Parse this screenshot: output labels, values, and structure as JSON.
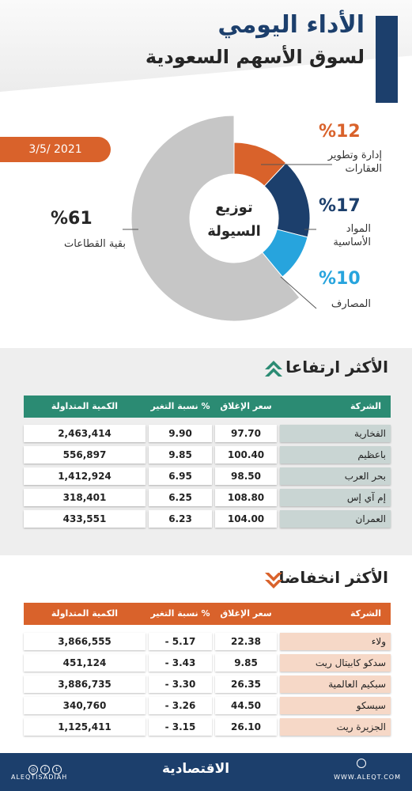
{
  "header": {
    "title_line1": "الأداء اليومي",
    "title_line2": "لسوق الأسهم السعودية"
  },
  "donut": {
    "date": "3/5/ 2021",
    "center_line1": "توزيع",
    "center_line2": "السيولة",
    "slices": [
      {
        "pct": "%12",
        "label_l1": "إدارة وتطوير",
        "label_l2": "العقارات",
        "value": 12,
        "color": "#d9622b"
      },
      {
        "pct": "%17",
        "label_l1": "المواد",
        "label_l2": "الأساسية",
        "value": 17,
        "color": "#1c3f6c"
      },
      {
        "pct": "%10",
        "label_l1": "المصارف",
        "label_l2": "",
        "value": 10,
        "color": "#27a4dd"
      },
      {
        "pct": "%61",
        "label_l1": "بقية القطاعات",
        "label_l2": "",
        "value": 61,
        "color": "#c6c6c6"
      }
    ]
  },
  "gainers": {
    "title": "الأكثر ارتفاعا",
    "header_color": "#2b8b73",
    "name_bg": "#c9d5d3",
    "columns": {
      "company": "الشركة",
      "close": "سعر الإغلاق",
      "change": "نسبة التغير %",
      "volume": "الكمية المتداولة"
    },
    "rows": [
      {
        "company": "الفخارية",
        "close": "97.70",
        "change": "9.90",
        "volume": "2,463,414"
      },
      {
        "company": "باعظيم",
        "close": "100.40",
        "change": "9.85",
        "volume": "556,897"
      },
      {
        "company": "بحر العرب",
        "close": "98.50",
        "change": "6.95",
        "volume": "1,412,924"
      },
      {
        "company": "إم آي إس",
        "close": "108.80",
        "change": "6.25",
        "volume": "318,401"
      },
      {
        "company": "العمران",
        "close": "104.00",
        "change": "6.23",
        "volume": "433,551"
      }
    ]
  },
  "losers": {
    "title": "الأكثر انخفاضا",
    "header_color": "#d9622b",
    "name_bg": "#f6d8c7",
    "columns": {
      "company": "الشركة",
      "close": "سعر الإغلاق",
      "change": "نسبة التغير %",
      "volume": "الكمية المتداولة"
    },
    "rows": [
      {
        "company": "ولاء",
        "close": "22.38",
        "change": "- 5.17",
        "volume": "3,866,555"
      },
      {
        "company": "سدكو كابيتال ريت",
        "close": "9.85",
        "change": "- 3.43",
        "volume": "451,124"
      },
      {
        "company": "سبكيم العالمية",
        "close": "26.35",
        "change": "- 3.30",
        "volume": "3,886,735"
      },
      {
        "company": "سيسكو",
        "close": "44.50",
        "change": "- 3.26",
        "volume": "340,760"
      },
      {
        "company": "الجزيرة ريت",
        "close": "26.10",
        "change": "- 3.15",
        "volume": "1,125,411"
      }
    ]
  },
  "footer": {
    "handle": "ALEQTISADIAH",
    "logo": "الاقتصادية",
    "url": "WWW.ALEQT.COM",
    "social_icons": [
      "instagram-icon",
      "facebook-icon",
      "twitter-icon"
    ]
  }
}
